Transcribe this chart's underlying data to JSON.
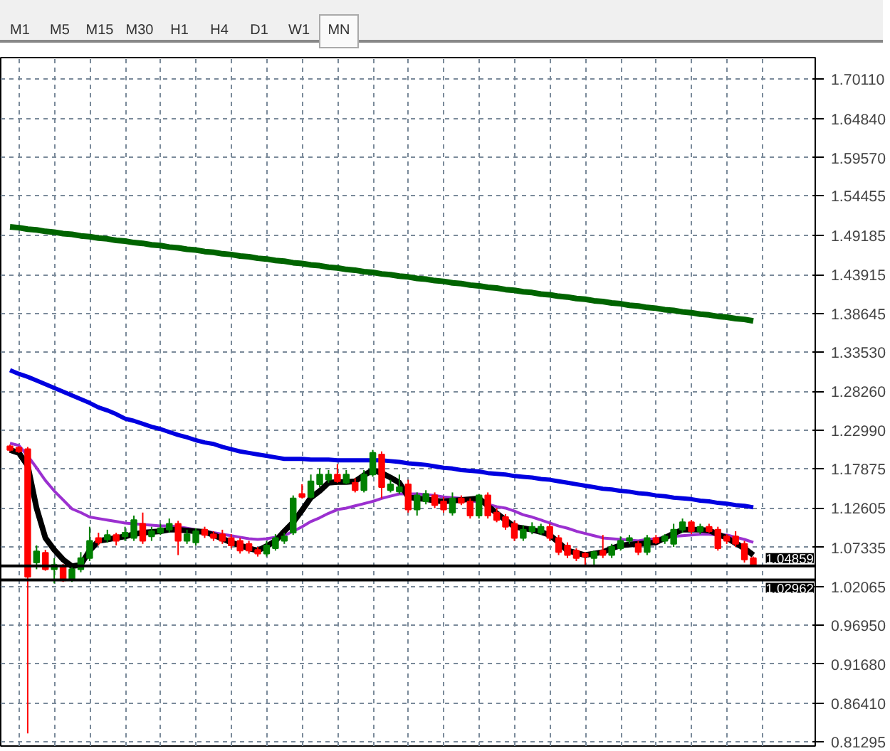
{
  "chart_data": {
    "type": "candlestick",
    "annotations": [
      "M1",
      "M5",
      "M15",
      "M30",
      "H1",
      "H4",
      "D1",
      "W1",
      "MN"
    ],
    "categories": [
      null,
      null,
      null,
      null,
      null,
      null,
      null,
      null,
      null,
      null,
      null,
      null,
      null,
      null,
      null,
      null,
      null,
      null,
      null,
      null,
      null,
      null,
      null,
      null,
      null,
      null,
      null,
      null,
      null,
      null,
      null,
      null,
      null,
      null,
      null,
      null,
      null,
      null,
      null,
      null,
      null,
      null,
      null,
      null,
      null,
      null,
      null,
      null,
      null,
      null,
      null,
      null,
      null,
      null,
      null,
      null,
      null,
      null,
      null,
      null,
      null,
      null,
      null,
      null,
      null,
      null,
      null,
      null,
      null,
      null,
      null,
      null,
      null,
      null,
      null,
      null,
      null,
      null,
      null,
      null,
      null,
      null,
      null,
      null,
      null
    ],
    "ohlc": [
      [
        1.209,
        1.211,
        1.202,
        1.204
      ],
      [
        1.207,
        1.209,
        1.2,
        1.202
      ],
      [
        1.205,
        1.208,
        0.824,
        1.034
      ],
      [
        1.053,
        1.076,
        1.044,
        1.068
      ],
      [
        1.066,
        1.07,
        1.042,
        1.044
      ],
      [
        1.044,
        1.059,
        1.025,
        1.05
      ],
      [
        1.048,
        1.051,
        1.027,
        1.029
      ],
      [
        1.031,
        1.05,
        1.027,
        1.044
      ],
      [
        1.044,
        1.067,
        1.04,
        1.059
      ],
      [
        1.059,
        1.101,
        1.055,
        1.082
      ],
      [
        1.086,
        1.093,
        1.076,
        1.08
      ],
      [
        1.084,
        1.097,
        1.08,
        1.09
      ],
      [
        1.09,
        1.093,
        1.076,
        1.082
      ],
      [
        1.088,
        1.101,
        1.082,
        1.093
      ],
      [
        1.086,
        1.116,
        1.082,
        1.11
      ],
      [
        1.105,
        1.12,
        1.078,
        1.082
      ],
      [
        1.088,
        1.101,
        1.082,
        1.095
      ],
      [
        1.093,
        1.105,
        1.09,
        1.099
      ],
      [
        1.097,
        1.112,
        1.093,
        1.105
      ],
      [
        1.105,
        1.109,
        1.063,
        1.082
      ],
      [
        1.082,
        1.097,
        1.078,
        1.091
      ],
      [
        1.08,
        1.099,
        1.076,
        1.095
      ],
      [
        1.097,
        1.101,
        1.086,
        1.09
      ],
      [
        1.091,
        1.095,
        1.082,
        1.086
      ],
      [
        1.091,
        1.097,
        1.078,
        1.082
      ],
      [
        1.086,
        1.091,
        1.072,
        1.076
      ],
      [
        1.082,
        1.086,
        1.065,
        1.069
      ],
      [
        1.078,
        1.082,
        1.065,
        1.069
      ],
      [
        1.07,
        1.074,
        1.061,
        1.065
      ],
      [
        1.065,
        1.082,
        1.061,
        1.076
      ],
      [
        1.072,
        1.091,
        1.069,
        1.086
      ],
      [
        1.082,
        1.093,
        1.078,
        1.088
      ],
      [
        1.093,
        1.143,
        1.09,
        1.139
      ],
      [
        1.145,
        1.158,
        1.139,
        1.141
      ],
      [
        1.141,
        1.171,
        1.139,
        1.162
      ],
      [
        1.158,
        1.179,
        1.154,
        1.171
      ],
      [
        1.164,
        1.177,
        1.16,
        1.171
      ],
      [
        1.171,
        1.185,
        1.16,
        1.162
      ],
      [
        1.16,
        1.177,
        1.158,
        1.171
      ],
      [
        1.16,
        1.166,
        1.147,
        1.15
      ],
      [
        1.15,
        1.177,
        1.147,
        1.171
      ],
      [
        1.171,
        1.204,
        1.168,
        1.2
      ],
      [
        1.198,
        1.202,
        1.139,
        1.154
      ],
      [
        1.15,
        1.164,
        1.147,
        1.158
      ],
      [
        1.148,
        1.171,
        1.145,
        1.154
      ],
      [
        1.158,
        1.164,
        1.12,
        1.124
      ],
      [
        1.124,
        1.147,
        1.116,
        1.143
      ],
      [
        1.135,
        1.15,
        1.131,
        1.145
      ],
      [
        1.143,
        1.147,
        1.126,
        1.13
      ],
      [
        1.135,
        1.141,
        1.12,
        1.124
      ],
      [
        1.12,
        1.147,
        1.116,
        1.139
      ],
      [
        1.139,
        1.143,
        1.13,
        1.133
      ],
      [
        1.135,
        1.139,
        1.112,
        1.116
      ],
      [
        1.116,
        1.145,
        1.112,
        1.143
      ],
      [
        1.143,
        1.147,
        1.112,
        1.116
      ],
      [
        1.12,
        1.126,
        1.107,
        1.11
      ],
      [
        1.114,
        1.118,
        1.097,
        1.101
      ],
      [
        1.105,
        1.109,
        1.082,
        1.086
      ],
      [
        1.086,
        1.103,
        1.082,
        1.097
      ],
      [
        1.095,
        1.107,
        1.091,
        1.101
      ],
      [
        1.093,
        1.105,
        1.09,
        1.101
      ],
      [
        1.101,
        1.105,
        1.082,
        1.086
      ],
      [
        1.086,
        1.09,
        1.063,
        1.067
      ],
      [
        1.076,
        1.08,
        1.059,
        1.063
      ],
      [
        1.069,
        1.072,
        1.055,
        1.059
      ],
      [
        1.065,
        1.067,
        1.05,
        1.061
      ],
      [
        1.059,
        1.069,
        1.05,
        1.067
      ],
      [
        1.069,
        1.09,
        1.059,
        1.063
      ],
      [
        1.063,
        1.078,
        1.059,
        1.074
      ],
      [
        1.072,
        1.088,
        1.069,
        1.082
      ],
      [
        1.082,
        1.09,
        1.078,
        1.086
      ],
      [
        1.078,
        1.082,
        1.063,
        1.067
      ],
      [
        1.067,
        1.09,
        1.063,
        1.086
      ],
      [
        1.086,
        1.09,
        1.078,
        1.08
      ],
      [
        1.082,
        1.091,
        1.078,
        1.088
      ],
      [
        1.078,
        1.105,
        1.074,
        1.097
      ],
      [
        1.097,
        1.112,
        1.093,
        1.107
      ],
      [
        1.107,
        1.11,
        1.091,
        1.095
      ],
      [
        1.095,
        1.105,
        1.091,
        1.101
      ],
      [
        1.101,
        1.105,
        1.093,
        1.095
      ],
      [
        1.097,
        1.101,
        1.069,
        1.072
      ],
      [
        1.088,
        1.091,
        1.078,
        1.082
      ],
      [
        1.088,
        1.095,
        1.074,
        1.078
      ],
      [
        1.078,
        1.082,
        1.053,
        1.057
      ],
      [
        1.059,
        1.061,
        1.048,
        1.049
      ]
    ],
    "colors": [
      "#ff0000",
      "#ff0000",
      "#ff0000",
      "#008000",
      "#ff0000",
      "#008000",
      "#ff0000",
      "#008000",
      "#008000",
      "#008000",
      "#ff0000",
      "#008000",
      "#ff0000",
      "#008000",
      "#008000",
      "#ff0000",
      "#008000",
      "#008000",
      "#008000",
      "#ff0000",
      "#008000",
      "#008000",
      "#ff0000",
      "#ff0000",
      "#ff0000",
      "#ff0000",
      "#ff0000",
      "#ff0000",
      "#ff0000",
      "#008000",
      "#008000",
      "#008000",
      "#008000",
      "#ff0000",
      "#008000",
      "#008000",
      "#008000",
      "#ff0000",
      "#008000",
      "#ff0000",
      "#008000",
      "#008000",
      "#ff0000",
      "#008000",
      "#008000",
      "#ff0000",
      "#008000",
      "#008000",
      "#ff0000",
      "#ff0000",
      "#008000",
      "#ff0000",
      "#ff0000",
      "#008000",
      "#ff0000",
      "#ff0000",
      "#ff0000",
      "#ff0000",
      "#008000",
      "#008000",
      "#008000",
      "#ff0000",
      "#ff0000",
      "#ff0000",
      "#ff0000",
      "#ff0000",
      "#008000",
      "#ff0000",
      "#008000",
      "#008000",
      "#008000",
      "#ff0000",
      "#008000",
      "#ff0000",
      "#008000",
      "#008000",
      "#008000",
      "#ff0000",
      "#008000",
      "#ff0000",
      "#ff0000",
      "#ff0000",
      "#ff0000",
      "#ff0000",
      "#ff0000"
    ],
    "series": [
      {
        "type": "line",
        "color": "#006400",
        "values": [
          1.503,
          1.502,
          1.5,
          1.499,
          1.497,
          1.496,
          1.494,
          1.493,
          1.491,
          1.49,
          1.488,
          1.487,
          1.485,
          1.484,
          1.482,
          1.481,
          1.479,
          1.478,
          1.476,
          1.475,
          1.473,
          1.472,
          1.47,
          1.469,
          1.467,
          1.466,
          1.464,
          1.463,
          1.461,
          1.46,
          1.458,
          1.457,
          1.455,
          1.454,
          1.452,
          1.451,
          1.449,
          1.448,
          1.446,
          1.445,
          1.443,
          1.442,
          1.44,
          1.439,
          1.437,
          1.436,
          1.434,
          1.433,
          1.431,
          1.43,
          1.428,
          1.427,
          1.425,
          1.424,
          1.422,
          1.421,
          1.419,
          1.418,
          1.416,
          1.415,
          1.413,
          1.412,
          1.41,
          1.409,
          1.407,
          1.406,
          1.404,
          1.403,
          1.401,
          1.4,
          1.398,
          1.397,
          1.395,
          1.394,
          1.392,
          1.391,
          1.389,
          1.388,
          1.386,
          1.385,
          1.383,
          1.382,
          1.38,
          1.379,
          1.377
        ]
      },
      {
        "type": "line",
        "color": "#0000e0",
        "values": [
          1.311,
          1.306,
          1.302,
          1.297,
          1.292,
          1.287,
          1.282,
          1.277,
          1.272,
          1.267,
          1.261,
          1.257,
          1.252,
          1.246,
          1.243,
          1.239,
          1.235,
          1.232,
          1.228,
          1.224,
          1.221,
          1.217,
          1.214,
          1.212,
          1.208,
          1.205,
          1.202,
          1.2,
          1.198,
          1.196,
          1.194,
          1.192,
          1.192,
          1.192,
          1.191,
          1.191,
          1.191,
          1.19,
          1.19,
          1.19,
          1.19,
          1.19,
          1.19,
          1.189,
          1.188,
          1.186,
          1.185,
          1.184,
          1.182,
          1.18,
          1.179,
          1.177,
          1.176,
          1.175,
          1.173,
          1.172,
          1.171,
          1.169,
          1.168,
          1.167,
          1.165,
          1.164,
          1.162,
          1.16,
          1.158,
          1.156,
          1.154,
          1.152,
          1.151,
          1.149,
          1.148,
          1.146,
          1.145,
          1.143,
          1.142,
          1.14,
          1.139,
          1.138,
          1.136,
          1.135,
          1.133,
          1.132,
          1.13,
          1.129,
          1.127
        ]
      },
      {
        "type": "line",
        "color": "#9b30d0",
        "values": [
          1.213,
          1.21,
          1.196,
          1.18,
          1.163,
          1.149,
          1.137,
          1.125,
          1.12,
          1.114,
          1.112,
          1.11,
          1.108,
          1.106,
          1.105,
          1.104,
          1.103,
          1.102,
          1.102,
          1.101,
          1.099,
          1.097,
          1.095,
          1.093,
          1.091,
          1.089,
          1.087,
          1.085,
          1.084,
          1.085,
          1.087,
          1.089,
          1.095,
          1.101,
          1.108,
          1.113,
          1.119,
          1.124,
          1.126,
          1.129,
          1.132,
          1.135,
          1.139,
          1.142,
          1.145,
          1.145,
          1.145,
          1.144,
          1.143,
          1.141,
          1.14,
          1.139,
          1.136,
          1.134,
          1.131,
          1.128,
          1.126,
          1.122,
          1.117,
          1.114,
          1.11,
          1.106,
          1.102,
          1.099,
          1.095,
          1.092,
          1.089,
          1.086,
          1.085,
          1.084,
          1.083,
          1.082,
          1.084,
          1.085,
          1.087,
          1.088,
          1.089,
          1.09,
          1.091,
          1.091,
          1.09,
          1.09,
          1.087,
          1.084,
          1.08
        ]
      },
      {
        "type": "line",
        "color": "#000000",
        "values": [
          1.204,
          1.2,
          1.183,
          1.126,
          1.086,
          1.07,
          1.057,
          1.048,
          1.05,
          1.069,
          1.082,
          1.084,
          1.086,
          1.088,
          1.091,
          1.093,
          1.094,
          1.095,
          1.097,
          1.097,
          1.096,
          1.095,
          1.094,
          1.09,
          1.085,
          1.08,
          1.076,
          1.072,
          1.069,
          1.075,
          1.082,
          1.095,
          1.107,
          1.123,
          1.14,
          1.149,
          1.16,
          1.161,
          1.161,
          1.162,
          1.17,
          1.177,
          1.173,
          1.167,
          1.16,
          1.141,
          1.139,
          1.138,
          1.136,
          1.135,
          1.136,
          1.137,
          1.138,
          1.139,
          1.129,
          1.119,
          1.11,
          1.101,
          1.099,
          1.097,
          1.094,
          1.09,
          1.08,
          1.069,
          1.066,
          1.063,
          1.065,
          1.067,
          1.072,
          1.076,
          1.077,
          1.078,
          1.079,
          1.08,
          1.086,
          1.092,
          1.097,
          1.097,
          1.097,
          1.096,
          1.091,
          1.086,
          1.079,
          1.072,
          1.063
        ]
      }
    ],
    "ylim": [
      0.807,
      1.73
    ],
    "yticks": [
      {
        "value": 1.7011,
        "label": "1.70110"
      },
      {
        "value": 1.6484,
        "label": "1.64840"
      },
      {
        "value": 1.5957,
        "label": "1.59570"
      },
      {
        "value": 1.54455,
        "label": "1.54455"
      },
      {
        "value": 1.49185,
        "label": "1.49185"
      },
      {
        "value": 1.43915,
        "label": "1.43915"
      },
      {
        "value": 1.38645,
        "label": "1.38645"
      },
      {
        "value": 1.3353,
        "label": "1.33530"
      },
      {
        "value": 1.2826,
        "label": "1.28260"
      },
      {
        "value": 1.2299,
        "label": "1.22990"
      },
      {
        "value": 1.17875,
        "label": "1.17875"
      },
      {
        "value": 1.12605,
        "label": "1.12605"
      },
      {
        "value": 1.07335,
        "label": "1.07335"
      },
      {
        "value": 1.02065,
        "label": "1.02065"
      },
      {
        "value": 0.9695,
        "label": "0.96950"
      },
      {
        "value": 0.9168,
        "label": "0.91680"
      },
      {
        "value": 0.8641,
        "label": "0.86410"
      },
      {
        "value": 0.81295,
        "label": "0.81295"
      }
    ],
    "grid": true,
    "tick_labels": "y",
    "ref_lines": [
      {
        "axis": "y",
        "value": 1.04859,
        "label": "1.04859",
        "color": "#000000"
      },
      {
        "axis": "y",
        "value": 1.02962,
        "label": "1.02962",
        "color": "#000000"
      }
    ]
  }
}
